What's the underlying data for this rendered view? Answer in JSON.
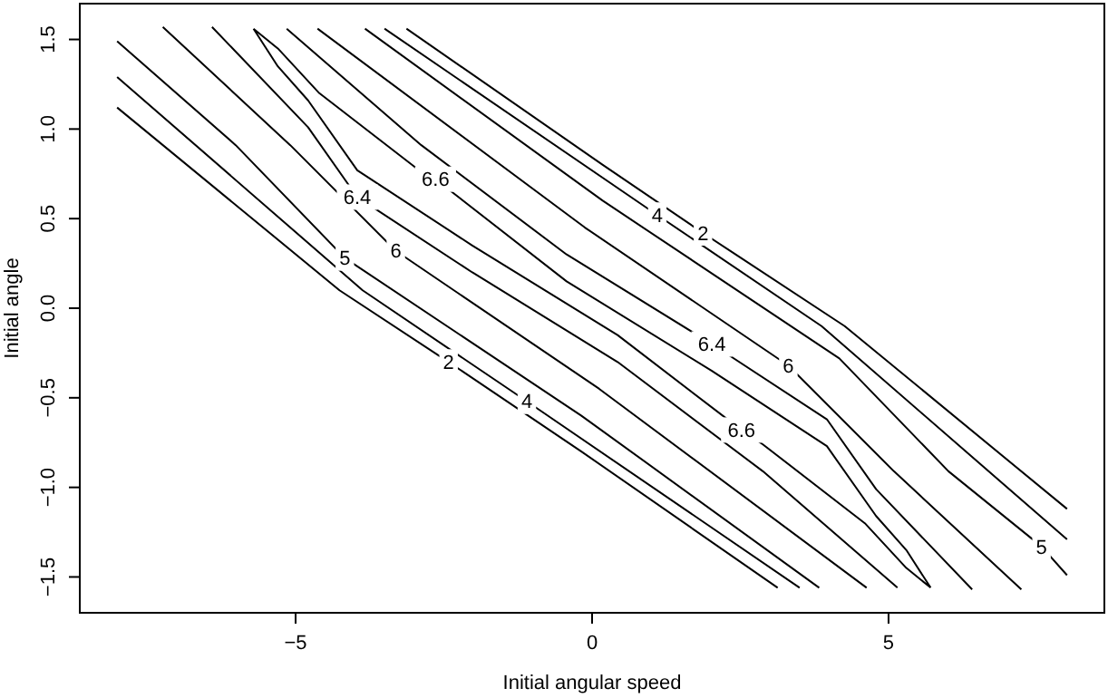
{
  "chart_data": {
    "type": "line",
    "xlabel": "Initial angular speed",
    "ylabel": "Initial angle",
    "xlim": [
      -8.64,
      8.64
    ],
    "ylim": [
      -1.7,
      1.7
    ],
    "xticks": [
      {
        "value": -5,
        "label": "−5"
      },
      0,
      5
    ],
    "yticks": [
      {
        "value": -1.5,
        "label": "−1.5"
      },
      {
        "value": -1,
        "label": "−1.0"
      },
      {
        "value": -0.5,
        "label": "−0.5"
      },
      {
        "value": 0,
        "label": "0.0"
      },
      0.5,
      {
        "value": 1,
        "label": "1.0"
      },
      1.5
    ],
    "line_style": "solid",
    "marker": "none",
    "series": [
      {
        "color": "#000000",
        "x": [
          -8.01,
          -4.26,
          -2.42,
          -0.18,
          3.13,
          null,
          -3.13,
          0.18,
          1.87,
          2.42,
          4.26,
          8.01
        ],
        "values": [
          1.12,
          0.1,
          -0.3,
          -0.8,
          -1.56,
          null,
          1.56,
          0.8,
          0.42,
          0.3,
          -0.1,
          -1.12
        ]
      },
      {
        "color": "#000000",
        "x": [
          -8.01,
          -3.87,
          -1.1,
          3.5,
          null,
          -3.5,
          1.1,
          3.87,
          8.01
        ],
        "values": [
          1.29,
          0.1,
          -0.52,
          -1.56,
          null,
          1.56,
          0.52,
          -0.1,
          -1.29
        ]
      },
      {
        "color": "#000000",
        "x": [
          -8.01,
          -6.01,
          -4.17,
          -0.18,
          3.83,
          null,
          -3.83,
          0.18,
          4.17,
          6.01,
          7.58,
          8.01
        ],
        "values": [
          1.49,
          0.91,
          0.28,
          -0.6,
          -1.56,
          null,
          1.56,
          0.6,
          -0.28,
          -0.91,
          -1.33,
          -1.49
        ]
      },
      {
        "color": "#000000",
        "x": [
          -7.24,
          -5.09,
          -3.31,
          0.12,
          4.63,
          null,
          -4.63,
          -0.12,
          3.31,
          5.09,
          7.24
        ],
        "values": [
          1.57,
          0.91,
          0.32,
          -0.45,
          -1.56,
          null,
          1.56,
          0.45,
          -0.32,
          -0.91,
          -1.57
        ]
      },
      {
        "color": "#000000",
        "x": [
          -6.41,
          -4.79,
          -3.96,
          -2.02,
          0.43,
          2.88,
          5.15,
          null,
          -5.15,
          -2.88,
          -0.43,
          2.02,
          3.96,
          4.79,
          6.41
        ],
        "values": [
          1.57,
          1.01,
          0.62,
          0.2,
          -0.3,
          -0.91,
          -1.56,
          null,
          1.56,
          0.91,
          0.3,
          -0.2,
          -0.62,
          -1.01,
          -1.57
        ]
      },
      {
        "color": "#000000",
        "x": [
          -5.71,
          -5.3,
          -4.79,
          -3.96,
          -2.02,
          0.43,
          2.52,
          2.88,
          4.6,
          5.3,
          5.71,
          null,
          -5.71,
          -5.3,
          -4.6,
          -2.88,
          -2.64,
          -0.43,
          2.02,
          3.96,
          4.79,
          5.3,
          5.71
        ],
        "values": [
          1.56,
          1.35,
          1.16,
          0.77,
          0.35,
          -0.15,
          -0.68,
          -0.76,
          -1.2,
          -1.45,
          -1.56,
          null,
          1.56,
          1.45,
          1.2,
          0.76,
          0.72,
          0.15,
          -0.35,
          -0.77,
          -1.16,
          -1.35,
          -1.56
        ]
      }
    ],
    "annotations": [
      {
        "text": "2",
        "x": -2.42,
        "y": -0.3
      },
      {
        "text": "2",
        "x": 1.87,
        "y": 0.42
      },
      {
        "text": "4",
        "x": -1.1,
        "y": -0.52
      },
      {
        "text": "4",
        "x": 1.1,
        "y": 0.52
      },
      {
        "text": "5",
        "x": -4.17,
        "y": 0.28
      },
      {
        "text": "5",
        "x": 7.58,
        "y": -1.33
      },
      {
        "text": "6",
        "x": -3.31,
        "y": 0.32
      },
      {
        "text": "6",
        "x": 3.31,
        "y": -0.32
      },
      {
        "text": "6.4",
        "x": -3.96,
        "y": 0.62
      },
      {
        "text": "6.4",
        "x": 2.02,
        "y": -0.2
      },
      {
        "text": "6.6",
        "x": -2.64,
        "y": 0.72
      },
      {
        "text": "6.6",
        "x": 2.52,
        "y": -0.68
      }
    ]
  }
}
